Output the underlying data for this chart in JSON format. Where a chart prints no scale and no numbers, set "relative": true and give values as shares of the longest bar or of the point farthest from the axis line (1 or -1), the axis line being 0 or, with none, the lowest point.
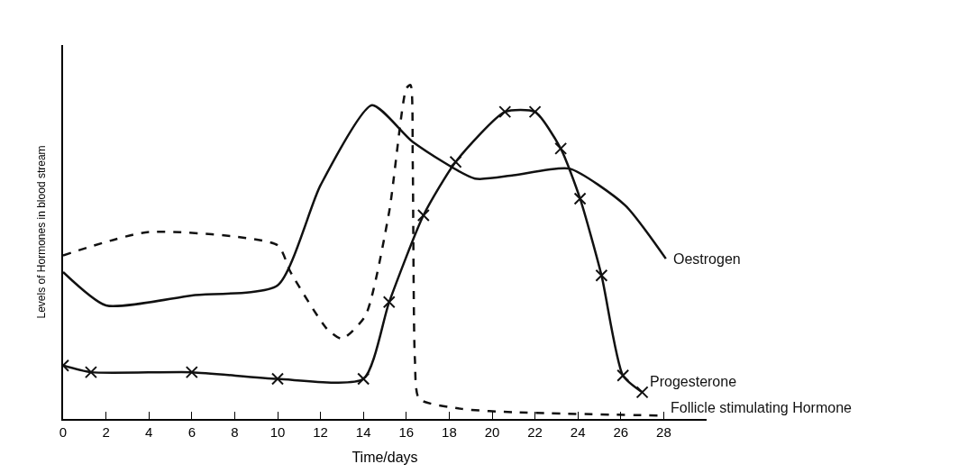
{
  "chart_data": {
    "type": "line",
    "relative": true,
    "xlabel": "Time/days",
    "ylabel": "Levels of Hormones in blood stream",
    "xlim": [
      0,
      30
    ],
    "xticks": [
      0,
      2,
      4,
      6,
      8,
      10,
      12,
      14,
      16,
      18,
      20,
      22,
      24,
      26,
      28
    ],
    "legend": false,
    "series": [
      {
        "name": "Oestrogen",
        "color": "#111111",
        "line_style": "solid",
        "marker": "none",
        "x": [
          0,
          2,
          6,
          10,
          12,
          14.4,
          16.3,
          19.2,
          21,
          23.6,
          26.2,
          28.1
        ],
        "values": [
          0.44,
          0.34,
          0.37,
          0.4,
          0.7,
          0.94,
          0.83,
          0.72,
          0.73,
          0.75,
          0.64,
          0.48
        ]
      },
      {
        "name": "Progesterone",
        "color": "#111111",
        "line_style": "solid",
        "marker": "cross",
        "x": [
          0,
          1.3,
          6,
          10,
          14,
          15.2,
          16.8,
          18.3,
          20.6,
          22,
          23.2,
          24.1,
          25.1,
          26.1,
          27
        ],
        "values": [
          0.16,
          0.14,
          0.14,
          0.12,
          0.12,
          0.35,
          0.61,
          0.77,
          0.92,
          0.92,
          0.81,
          0.66,
          0.43,
          0.13,
          0.08
        ]
      },
      {
        "name": "Follicle stimulating Hormone",
        "color": "#111111",
        "line_style": "dashed",
        "marker": "none",
        "x": [
          0,
          4,
          10,
          10.6,
          12.3,
          13,
          14.1,
          15.2,
          16,
          16.2,
          16.3,
          16.4,
          16.6,
          18.6,
          21,
          28
        ],
        "values": [
          0.49,
          0.56,
          0.52,
          0.44,
          0.27,
          0.24,
          0.31,
          0.62,
          0.99,
          1.0,
          0.77,
          0.18,
          0.06,
          0.03,
          0.02,
          0.01
        ]
      }
    ]
  }
}
